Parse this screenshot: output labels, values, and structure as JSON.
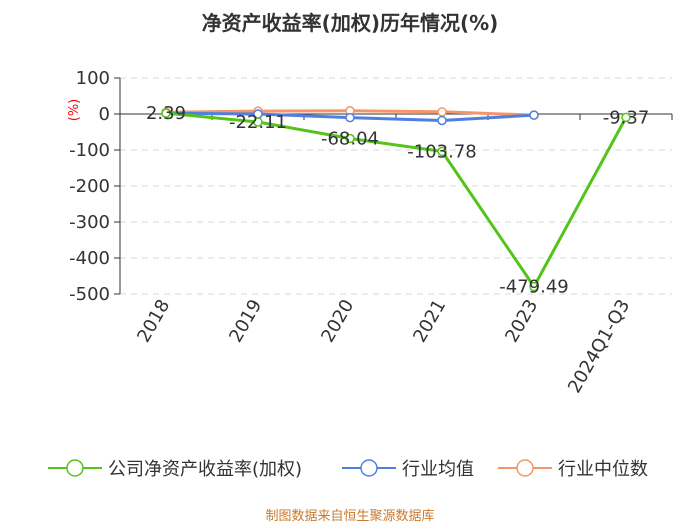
{
  "chart_data": {
    "type": "line",
    "title": "净资产收益率(加权)历年情况(%)",
    "ylabel": "(%)",
    "categories": [
      "2018",
      "2019",
      "2020",
      "2021",
      "2023",
      "2024Q1-Q3"
    ],
    "ylim": [
      -500,
      100
    ],
    "yticks": [
      100,
      0,
      -100,
      -200,
      -300,
      -400,
      -500
    ],
    "grid": true,
    "legend_position": "bottom",
    "series": [
      {
        "name": "公司净资产收益率(加权)",
        "color": "#52c41a",
        "values": [
          2.39,
          -22.11,
          -68.04,
          -103.78,
          -479.49,
          -9.37
        ],
        "labels": [
          "2.39",
          "-22.11",
          "-68.04",
          "-103.78",
          "-479.49",
          "-9.37"
        ]
      },
      {
        "name": "行业均值",
        "color": "#4f7fe0",
        "values": [
          2,
          0,
          -10,
          -18,
          -3,
          null
        ]
      },
      {
        "name": "行业中位数",
        "color": "#f4956a",
        "values": [
          5,
          8,
          9,
          6,
          -3,
          null
        ]
      }
    ]
  },
  "source": "制图数据来自恒生聚源数据库"
}
